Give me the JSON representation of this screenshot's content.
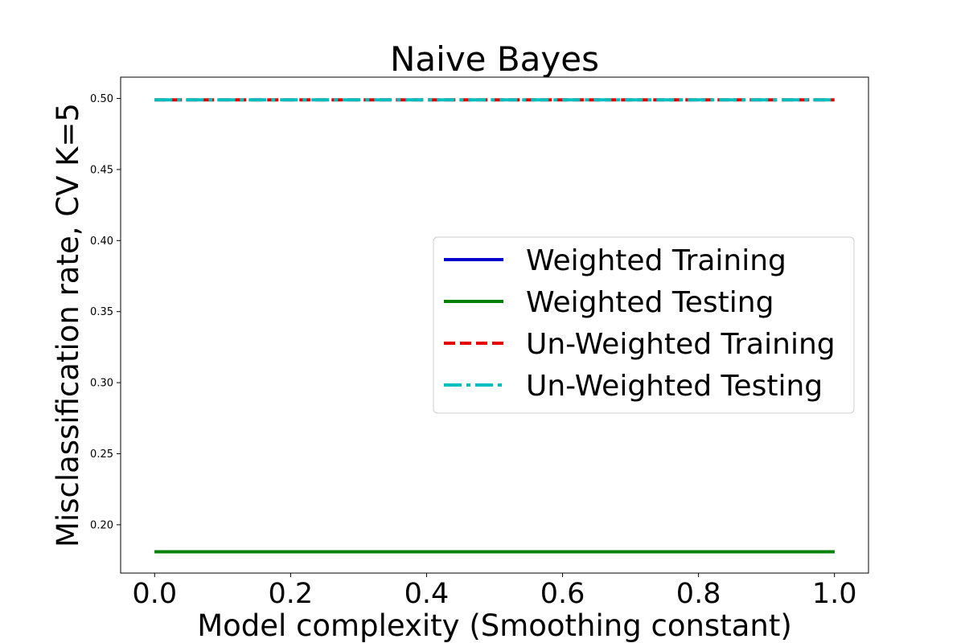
{
  "chart_data": {
    "type": "line",
    "title": "Naive Bayes",
    "xlabel": "Model complexity (Smoothing constant)",
    "ylabel": "Misclassification rate, CV K=5",
    "xlim": [
      -0.05,
      1.05
    ],
    "ylim": [
      0.166,
      0.515
    ],
    "x_ticks": [
      0.0,
      0.2,
      0.4,
      0.6,
      0.8,
      1.0
    ],
    "x_tick_labels": [
      "0.0",
      "0.2",
      "0.4",
      "0.6",
      "0.8",
      "1.0"
    ],
    "y_ticks": [
      0.2,
      0.25,
      0.3,
      0.35,
      0.4,
      0.45,
      0.5
    ],
    "y_tick_labels": [
      "0.20",
      "0.25",
      "0.30",
      "0.35",
      "0.40",
      "0.45",
      "0.50"
    ],
    "grid": false,
    "legend_position": "center-right",
    "series": [
      {
        "name": "Weighted Training",
        "color": "#0000cc",
        "style": "solid",
        "x": [
          0.0,
          1.0
        ],
        "y": [
          0.181,
          0.181
        ]
      },
      {
        "name": "Weighted Testing",
        "color": "#008000",
        "style": "solid",
        "x": [
          0.0,
          1.0
        ],
        "y": [
          0.181,
          0.181
        ]
      },
      {
        "name": "Un-Weighted Training",
        "color": "#e60000",
        "style": "dashed",
        "x": [
          0.0,
          1.0
        ],
        "y": [
          0.499,
          0.499
        ]
      },
      {
        "name": "Un-Weighted Testing",
        "color": "#00bfbf",
        "style": "dashdot",
        "x": [
          0.0,
          1.0
        ],
        "y": [
          0.499,
          0.499
        ]
      }
    ]
  }
}
